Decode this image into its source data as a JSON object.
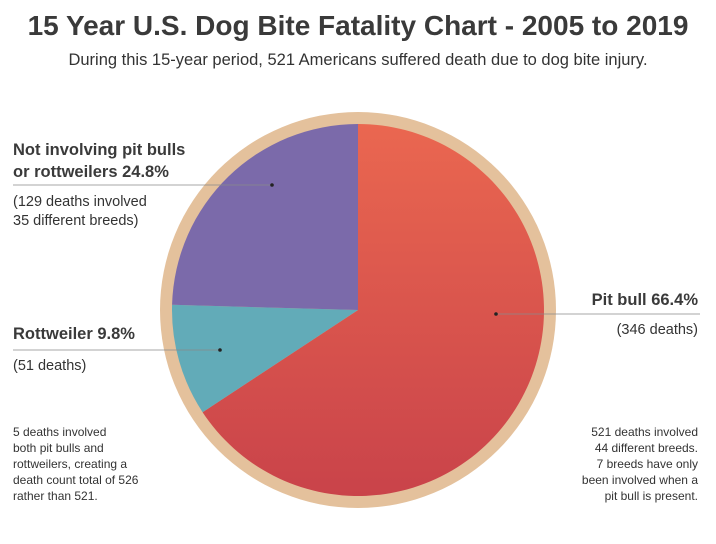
{
  "header": {
    "title": "15 Year U.S. Dog Bite Fatality Chart - 2005 to 2019",
    "subtitle": "During this 15-year period, 521 Americans suffered death due to dog bite injury."
  },
  "chart_data": {
    "type": "pie",
    "slices": [
      {
        "label": "Pit bull",
        "value": 66.4,
        "deaths": 346,
        "color": "#e05a4a"
      },
      {
        "label": "Rottweiler",
        "value": 9.8,
        "deaths": 51,
        "color": "#62abb8"
      },
      {
        "label": "Not involving pit bulls or rottweilers",
        "value": 24.8,
        "deaths": 129,
        "color": "#7b6aaa"
      }
    ],
    "ring_color": "#e4c19c"
  },
  "labels": {
    "pitbull": {
      "title": "Pit bull 66.4%",
      "detail": "(346 deaths)"
    },
    "rottweiler": {
      "title": "Rottweiler 9.8%",
      "detail": "(51 deaths)"
    },
    "other": {
      "title_line1": "Not involving pit bulls",
      "title_line2": "or rottweilers 24.8%",
      "detail_line1": "(129 deaths involved",
      "detail_line2": "35 different breeds)"
    }
  },
  "notes": {
    "left": [
      "5 deaths involved",
      "both pit bulls and",
      "rottweilers, creating a",
      "death count total of 526",
      "rather than 521."
    ],
    "right": [
      "521 deaths involved",
      "44 different breeds.",
      "7 breeds have only",
      "been involved when a",
      "pit bull is present."
    ]
  }
}
